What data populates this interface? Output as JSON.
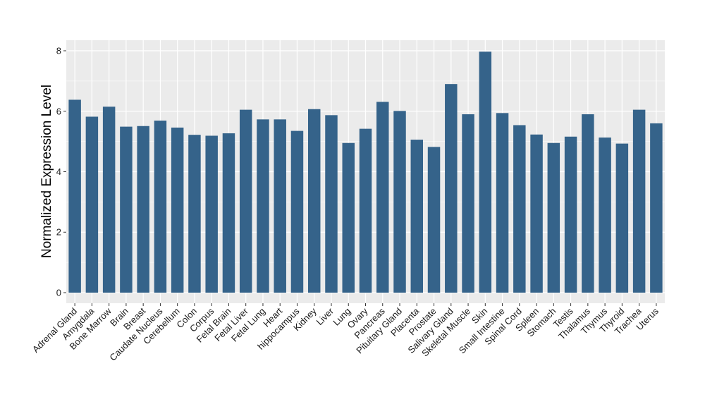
{
  "chart_data": {
    "type": "bar",
    "ylabel": "Normalized Expression Level",
    "xlabel": "",
    "ylim": [
      -0.35,
      8.35
    ],
    "yticks": [
      0,
      2,
      4,
      6,
      8
    ],
    "grid": true,
    "colors": {
      "bar": "#35638a",
      "panel": "#ebebeb",
      "grid": "#ffffff"
    },
    "categories": [
      "Adrenal Gland",
      "Amygdala",
      "Bone Marrow",
      "Brain",
      "Breast",
      "Caudate Nucleus",
      "Cerebellum",
      "Colon",
      "Corpus",
      "Fetal Brain",
      "Fetal Liver",
      "Fetal Lung",
      "Heart",
      "hippocampus",
      "Kidney",
      "Liver",
      "Lung",
      "Ovary",
      "Pancreas",
      "Pituitary Gland",
      "Placenta",
      "Prostate",
      "Salivary Gland",
      "Skeletal Muscle",
      "Skin",
      "Small Intestine",
      "Spinal Cord",
      "Spleen",
      "Stomach",
      "Testis",
      "Thalamus",
      "Thymus",
      "Thyroid",
      "Trachea",
      "Uterus"
    ],
    "values": [
      6.38,
      5.82,
      6.15,
      5.49,
      5.51,
      5.69,
      5.46,
      5.22,
      5.19,
      5.27,
      6.05,
      5.73,
      5.73,
      5.35,
      6.07,
      5.87,
      4.95,
      5.42,
      6.31,
      6.01,
      5.06,
      4.82,
      6.9,
      5.9,
      7.97,
      5.94,
      5.54,
      5.23,
      4.95,
      5.16,
      5.9,
      5.13,
      4.93,
      6.05,
      5.6
    ]
  }
}
